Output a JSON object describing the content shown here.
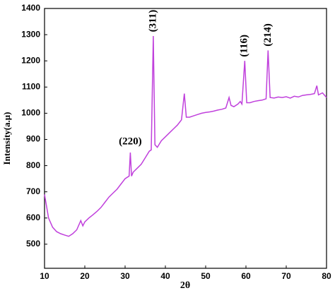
{
  "chart_data": {
    "type": "line",
    "x_label": "2θ",
    "y_label": "Intensity(a.μ)",
    "x": [
      10,
      11,
      12,
      13,
      14,
      15,
      16,
      17,
      18,
      19,
      19.5,
      20,
      21,
      22,
      23,
      24,
      25,
      26,
      27,
      28,
      29,
      30,
      31,
      31.3,
      31.6,
      32,
      33,
      34,
      35,
      36,
      36.5,
      37,
      37.4,
      38,
      39,
      40,
      41,
      42,
      43,
      44,
      44.7,
      45.2,
      46,
      47,
      48,
      49,
      50,
      51,
      52,
      53,
      54,
      55,
      55.8,
      56.3,
      57,
      58,
      58.6,
      59,
      59.7,
      60.2,
      61,
      62,
      63,
      64,
      65,
      65.5,
      66,
      67,
      68,
      69,
      70,
      71,
      72,
      73,
      74,
      75,
      76,
      77,
      77.6,
      78,
      79,
      80
    ],
    "values": [
      690,
      600,
      565,
      548,
      540,
      535,
      530,
      540,
      555,
      590,
      570,
      585,
      600,
      612,
      625,
      640,
      660,
      680,
      695,
      710,
      730,
      750,
      760,
      850,
      760,
      775,
      790,
      805,
      830,
      855,
      860,
      1295,
      880,
      870,
      895,
      910,
      925,
      940,
      955,
      975,
      1075,
      985,
      985,
      990,
      995,
      1000,
      1003,
      1005,
      1008,
      1012,
      1015,
      1020,
      1060,
      1030,
      1025,
      1035,
      1045,
      1035,
      1200,
      1040,
      1040,
      1045,
      1048,
      1050,
      1055,
      1240,
      1060,
      1058,
      1062,
      1060,
      1063,
      1058,
      1065,
      1062,
      1068,
      1070,
      1072,
      1075,
      1105,
      1070,
      1078,
      1060
    ],
    "color": "#c040dc",
    "xlim": [
      10,
      80
    ],
    "xticks": [
      10,
      20,
      30,
      40,
      50,
      60,
      70,
      80
    ],
    "ylim": [
      408,
      1400
    ],
    "yticks": [
      500,
      600,
      700,
      800,
      900,
      1000,
      1100,
      1200,
      1300,
      1400
    ],
    "grid": false,
    "annotations": [
      {
        "text": "(220)",
        "x": 31.3,
        "y": 890,
        "rotated": false
      },
      {
        "text": "(311)",
        "x": 37,
        "y": 1310,
        "rotated": true
      },
      {
        "text": "(116)",
        "x": 59.7,
        "y": 1215,
        "rotated": true
      },
      {
        "text": "(214)",
        "x": 65.5,
        "y": 1255,
        "rotated": true
      }
    ]
  }
}
